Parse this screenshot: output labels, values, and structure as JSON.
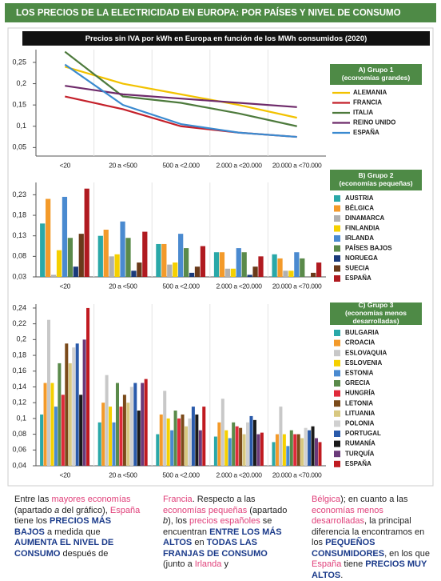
{
  "header": {
    "title": "LOS PRECIOS DE LA ELECTRICIDAD EN EUROPA: POR PAÍSES Y NIVEL DE CONSUMO",
    "subtitle": "Precios sin IVA por kWh en Europa en función de los MWh consumidos (2020)"
  },
  "chart_data": [
    {
      "type": "line",
      "legend_title": "A) Grupo 1 (economías grandes)",
      "categories": [
        "<20",
        "20 a <500",
        "500 a <2.000",
        "2.000 a <20.000",
        "20.000 a <70.000"
      ],
      "ylim": [
        0.03,
        0.28
      ],
      "yticks": [
        {
          "value": 0.25,
          "label": "0,25"
        },
        {
          "value": 0.2,
          "label": "0,2"
        },
        {
          "value": 0.15,
          "label": "0,15"
        },
        {
          "value": 0.1,
          "label": "0,1"
        },
        {
          "value": 0.05,
          "label": "0,05"
        }
      ],
      "series": [
        {
          "name": "ALEMANIA",
          "color": "#f2c200",
          "values": [
            0.24,
            0.2,
            0.175,
            0.15,
            0.12
          ]
        },
        {
          "name": "FRANCIA",
          "color": "#c4202a",
          "values": [
            0.17,
            0.14,
            0.1,
            0.085,
            0.075
          ]
        },
        {
          "name": "ITALIA",
          "color": "#4d7a3c",
          "values": [
            0.275,
            0.17,
            0.155,
            0.13,
            0.1
          ]
        },
        {
          "name": "REINO UNIDO",
          "color": "#6e2a6a",
          "values": [
            0.195,
            0.175,
            0.165,
            0.155,
            0.145
          ]
        },
        {
          "name": "ESPAÑA",
          "color": "#3a8ad0",
          "values": [
            0.245,
            0.15,
            0.105,
            0.085,
            0.075
          ]
        }
      ]
    },
    {
      "type": "bar",
      "legend_title": "B) Grupo 2 (economías pequeñas)",
      "categories": [
        "<20",
        "20 a <500",
        "500 a <2.000",
        "2.000 a <20.000",
        "20.000 a <70.000"
      ],
      "ylim": [
        0.03,
        0.26
      ],
      "yticks": [
        {
          "value": 0.23,
          "label": "0,23"
        },
        {
          "value": 0.18,
          "label": "0,18"
        },
        {
          "value": 0.13,
          "label": "0,13"
        },
        {
          "value": 0.08,
          "label": "0,08"
        },
        {
          "value": 0.03,
          "label": "0,03"
        }
      ],
      "series": [
        {
          "name": "AUSTRIA",
          "color": "#2aa8a8",
          "values": [
            0.16,
            0.13,
            0.11,
            0.09,
            0.085
          ]
        },
        {
          "name": "BÉLGICA",
          "color": "#f39a2a",
          "values": [
            0.22,
            0.145,
            0.11,
            0.09,
            0.075
          ]
        },
        {
          "name": "DINAMARCA",
          "color": "#b0b0b0",
          "values": [
            0.035,
            0.08,
            0.06,
            0.05,
            0.045
          ]
        },
        {
          "name": "FINLANDIA",
          "color": "#f5d000",
          "values": [
            0.095,
            0.085,
            0.065,
            0.05,
            0.045
          ]
        },
        {
          "name": "IRLANDA",
          "color": "#4a8ad0",
          "values": [
            0.225,
            0.165,
            0.135,
            0.1,
            0.09
          ]
        },
        {
          "name": "PAÍSES BAJOS",
          "color": "#5a8a4a",
          "values": [
            0.125,
            0.125,
            0.1,
            0.09,
            0.075
          ]
        },
        {
          "name": "NORUEGA",
          "color": "#1a3a7a",
          "values": [
            0.055,
            0.045,
            0.04,
            0.035,
            0.03
          ]
        },
        {
          "name": "SUECIA",
          "color": "#6a3a1a",
          "values": [
            0.135,
            0.065,
            0.055,
            0.055,
            0.04
          ]
        },
        {
          "name": "ESPAÑA",
          "color": "#b01a20",
          "values": [
            0.245,
            0.14,
            0.105,
            0.08,
            0.065
          ]
        }
      ]
    },
    {
      "type": "bar",
      "legend_title": "C) Grupo 3 (economías menos desarrolladas)",
      "categories": [
        "<20",
        "20 a <500",
        "500 a <2.000",
        "2.000 a <20.000",
        "20.000 a <70.000"
      ],
      "ylim": [
        0.04,
        0.245
      ],
      "yticks": [
        {
          "value": 0.24,
          "label": "0,24"
        },
        {
          "value": 0.22,
          "label": "0,22"
        },
        {
          "value": 0.2,
          "label": "0,2"
        },
        {
          "value": 0.18,
          "label": "0,18"
        },
        {
          "value": 0.16,
          "label": "0,16"
        },
        {
          "value": 0.14,
          "label": "0,14"
        },
        {
          "value": 0.12,
          "label": "0,12"
        },
        {
          "value": 0.1,
          "label": "0,1"
        },
        {
          "value": 0.08,
          "label": "0,08"
        },
        {
          "value": 0.06,
          "label": "0,06"
        },
        {
          "value": 0.04,
          "label": "0,04"
        }
      ],
      "series": [
        {
          "name": "BULGARIA",
          "color": "#2aa8a8",
          "values": [
            0.105,
            0.095,
            0.08,
            0.077,
            0.07
          ]
        },
        {
          "name": "CROACIA",
          "color": "#f39a2a",
          "values": [
            0.145,
            0.12,
            0.105,
            0.095,
            0.08
          ]
        },
        {
          "name": "ESLOVAQUIA",
          "color": "#c8c8c8",
          "values": [
            0.225,
            0.155,
            0.135,
            0.125,
            0.115
          ]
        },
        {
          "name": "ESLOVENIA",
          "color": "#f5d000",
          "values": [
            0.145,
            0.115,
            0.1,
            0.085,
            0.08
          ]
        },
        {
          "name": "ESTONIA",
          "color": "#4a8ad0",
          "values": [
            0.115,
            0.095,
            0.085,
            0.075,
            0.065
          ]
        },
        {
          "name": "GRECIA",
          "color": "#5a8a4a",
          "values": [
            0.17,
            0.145,
            0.11,
            0.095,
            0.085
          ]
        },
        {
          "name": "HUNGRÍA",
          "color": "#e02a3a",
          "values": [
            0.13,
            0.115,
            0.1,
            0.09,
            0.08
          ]
        },
        {
          "name": "LETONIA",
          "color": "#7a4a1a",
          "values": [
            0.195,
            0.13,
            0.105,
            0.088,
            0.08
          ]
        },
        {
          "name": "LITUANIA",
          "color": "#d8c880",
          "values": [
            0.17,
            0.12,
            0.09,
            0.08,
            0.075
          ]
        },
        {
          "name": "POLONIA",
          "color": "#d0d0d0",
          "values": [
            0.19,
            0.14,
            0.1,
            0.095,
            0.088
          ]
        },
        {
          "name": "PORTUGAL",
          "color": "#2a5aaa",
          "values": [
            0.195,
            0.145,
            0.115,
            0.103,
            0.085
          ]
        },
        {
          "name": "RUMANÍA",
          "color": "#1a1a1a",
          "values": [
            0.13,
            0.11,
            0.105,
            0.098,
            0.09
          ]
        },
        {
          "name": "TURQUÍA",
          "color": "#6a3a7a",
          "values": [
            0.2,
            0.145,
            0.085,
            0.08,
            0.075
          ]
        },
        {
          "name": "ESPAÑA",
          "color": "#c01a20",
          "values": [
            0.24,
            0.15,
            0.115,
            0.082,
            0.07
          ]
        }
      ]
    }
  ],
  "footer": {
    "columns": [
      [
        {
          "text": "Entre las ",
          "style": "plain"
        },
        {
          "text": "mayores economías",
          "style": "pink"
        },
        {
          "text": " (apartado ",
          "style": "plain"
        },
        {
          "text": "a",
          "style": "italic"
        },
        {
          "text": " del gráfico), ",
          "style": "plain"
        },
        {
          "text": "España",
          "style": "pink"
        },
        {
          "text": " tiene los ",
          "style": "plain"
        },
        {
          "text": "PRECIOS MÁS BAJOS",
          "style": "strong"
        },
        {
          "text": " a medida que ",
          "style": "plain"
        },
        {
          "text": "AUMENTA EL NIVEL DE CONSUMO",
          "style": "strong"
        },
        {
          "text": " después de",
          "style": "plain"
        }
      ],
      [
        {
          "text": "Francia",
          "style": "pink"
        },
        {
          "text": ". Respecto a las ",
          "style": "plain"
        },
        {
          "text": "economías pequeñas",
          "style": "pink"
        },
        {
          "text": " (apartado ",
          "style": "plain"
        },
        {
          "text": "b",
          "style": "italic"
        },
        {
          "text": "), los ",
          "style": "plain"
        },
        {
          "text": "precios españoles",
          "style": "pink"
        },
        {
          "text": " se encuentran ",
          "style": "plain"
        },
        {
          "text": "ENTRE LOS MÁS ALTOS",
          "style": "strong"
        },
        {
          "text": " en ",
          "style": "plain"
        },
        {
          "text": "TODAS LAS FRANJAS DE CONSUMO",
          "style": "strong"
        },
        {
          "text": " (junto a ",
          "style": "plain"
        },
        {
          "text": "Irlanda",
          "style": "pink"
        },
        {
          "text": " y",
          "style": "plain"
        }
      ],
      [
        {
          "text": "Bélgica",
          "style": "pink"
        },
        {
          "text": "); en cuanto a las ",
          "style": "plain"
        },
        {
          "text": "economías menos desarrolladas",
          "style": "pink"
        },
        {
          "text": ", la principal diferencia la encontramos en los ",
          "style": "plain"
        },
        {
          "text": "PEQUEÑOS CONSUMIDORES",
          "style": "strong"
        },
        {
          "text": ", en los que ",
          "style": "plain"
        },
        {
          "text": "España",
          "style": "pink"
        },
        {
          "text": " tiene ",
          "style": "plain"
        },
        {
          "text": "PRECIOS MUY ALTOS",
          "style": "strong"
        },
        {
          "text": ".",
          "style": "plain"
        }
      ]
    ]
  }
}
